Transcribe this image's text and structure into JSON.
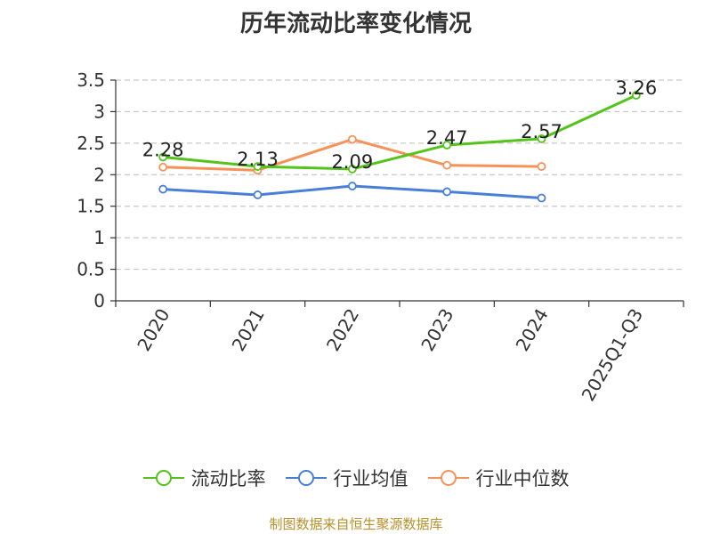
{
  "title": "历年流动比率变化情况",
  "source": "制图数据来自恒生聚源数据库",
  "chart_data": {
    "type": "line",
    "categories": [
      "2020",
      "2021",
      "2022",
      "2023",
      "2024",
      "2025Q1-Q3"
    ],
    "ylim": [
      0,
      3.5
    ],
    "y_ticks": [
      "0",
      "0.5",
      "1",
      "1.5",
      "2",
      "2.5",
      "3",
      "3.5"
    ],
    "grid": "horizontal dashed",
    "legend_position": "bottom",
    "series": [
      {
        "name": "流动比率",
        "color": "#52c41a",
        "values": [
          2.28,
          2.13,
          2.09,
          2.47,
          2.57,
          3.26
        ],
        "labels": [
          "2.28",
          "2.13",
          "2.09",
          "2.47",
          "2.57",
          "3.26"
        ]
      },
      {
        "name": "行业均值",
        "color": "#4a7fd9",
        "values": [
          1.77,
          1.68,
          1.82,
          1.73,
          1.63,
          null
        ]
      },
      {
        "name": "行业中位数",
        "color": "#f5925a",
        "values": [
          2.12,
          2.07,
          2.56,
          2.15,
          2.13,
          null
        ]
      }
    ]
  }
}
